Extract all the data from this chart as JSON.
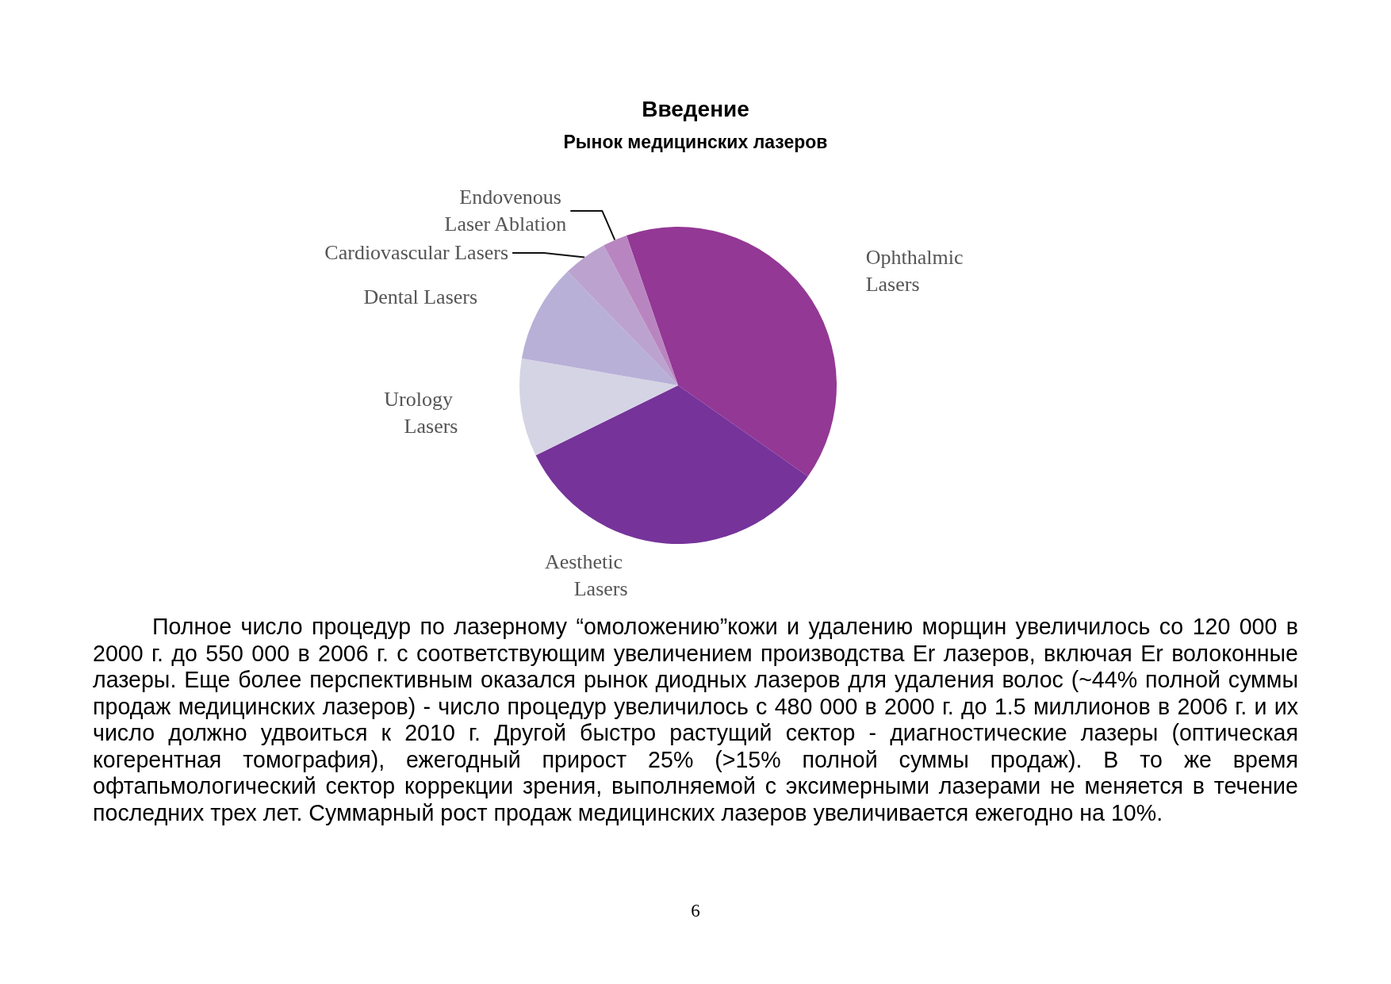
{
  "chart_data": {
    "type": "pie",
    "title": "Введение",
    "subtitle": "Рынок медицинских лазеров",
    "categories": [
      "Ophthalmic Lasers",
      "Aesthetic Lasers",
      "Urology Lasers",
      "Dental Lasers",
      "Cardiovascular Lasers",
      "Endovenous Laser Ablation"
    ],
    "values": [
      40,
      33,
      10,
      10,
      4.5,
      2.5
    ],
    "colors": [
      "#933895",
      "#76339a",
      "#d5d4e4",
      "#b9b0d8",
      "#bca3cf",
      "#b985c0"
    ],
    "annotations": [
      "Полное число процедур по лазерному “омоложению”кожи и удалению морщин увеличилось со 120 000 в 2000 г. до 550 000 в 2006 г. с соответствующим увеличением производства Er лазеров, включая Er волоконные лазеры. Еще более перспективным оказался рынок диодных лазеров для удаления волос (~44% полной суммы продаж медицинских лазеров) - число процедур увеличилось с 480 000 в 2000 г. до 1.5 миллионов в 2006 г. и их число должно удвоиться к 2010 г. Другой быстро растущий сектор - диагностические лазеры (оптическая когерентная томография), ежегодный прирост 25% (>15% полной суммы продаж). В то же время офтапьмологический сектор коррекции зрения, выполняемой с эксимерными лазерами не меняется в течение последних трех лет. Суммарный рост продаж медицинских лазеров увеличивается ежегодно на 10%.",
      "6"
    ]
  }
}
